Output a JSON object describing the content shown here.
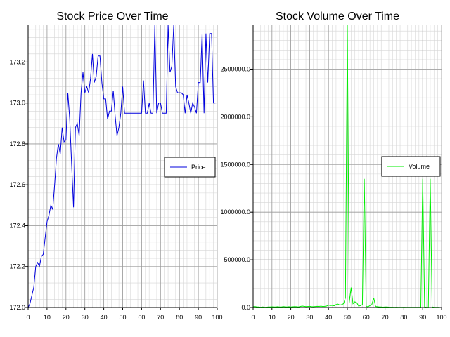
{
  "chart_data": [
    {
      "type": "line",
      "title": "Stock Price Over Time",
      "xlabel": "",
      "ylabel": "",
      "xlim": [
        0,
        100
      ],
      "ylim": [
        172.0,
        173.38
      ],
      "xticks": [
        "0",
        "10",
        "20",
        "30",
        "40",
        "50",
        "60",
        "70",
        "80",
        "90",
        "100"
      ],
      "yticks": [
        "172.0",
        "172.2",
        "172.4",
        "172.6",
        "172.8",
        "173.0",
        "173.2"
      ],
      "grid": true,
      "legend": "center-right",
      "series": [
        {
          "name": "Price",
          "color": "#0000dd",
          "x": [
            0,
            1,
            2,
            3,
            4,
            5,
            6,
            7,
            8,
            9,
            10,
            11,
            12,
            13,
            14,
            15,
            16,
            17,
            18,
            19,
            20,
            21,
            22,
            23,
            24,
            25,
            26,
            27,
            28,
            29,
            30,
            31,
            32,
            33,
            34,
            35,
            36,
            37,
            38,
            39,
            40,
            41,
            42,
            43,
            44,
            45,
            46,
            47,
            48,
            49,
            50,
            51,
            52,
            53,
            54,
            55,
            56,
            57,
            58,
            59,
            60,
            61,
            62,
            63,
            64,
            65,
            66,
            67,
            68,
            69,
            70,
            71,
            72,
            73,
            74,
            75,
            76,
            77,
            78,
            79,
            80,
            81,
            82,
            83,
            84,
            85,
            86,
            87,
            88,
            89,
            90,
            91,
            92,
            93,
            94,
            95,
            96,
            97,
            98,
            99
          ],
          "y": [
            172.0,
            172.02,
            172.06,
            172.1,
            172.2,
            172.22,
            172.2,
            172.25,
            172.26,
            172.34,
            172.42,
            172.45,
            172.5,
            172.48,
            172.6,
            172.73,
            172.8,
            172.75,
            172.88,
            172.81,
            172.82,
            173.05,
            172.92,
            172.7,
            172.49,
            172.88,
            172.9,
            172.84,
            173.05,
            173.15,
            173.05,
            173.08,
            173.05,
            173.12,
            173.24,
            173.1,
            173.13,
            173.23,
            173.23,
            173.1,
            173.02,
            173.02,
            172.92,
            172.96,
            172.96,
            173.06,
            172.94,
            172.84,
            172.88,
            172.95,
            173.08,
            172.95,
            172.95,
            172.95,
            172.95,
            172.95,
            172.95,
            172.95,
            172.95,
            172.95,
            172.95,
            173.11,
            172.95,
            172.95,
            173.0,
            172.95,
            172.95,
            173.38,
            172.95,
            173.0,
            173.0,
            172.95,
            172.95,
            172.95,
            173.38,
            173.15,
            173.18,
            173.38,
            173.08,
            173.05,
            173.05,
            173.05,
            173.04,
            172.95,
            173.04,
            173.0,
            172.95,
            173.0,
            172.98,
            172.95,
            173.1,
            173.1,
            173.34,
            172.95,
            173.34,
            173.1,
            173.34,
            173.34,
            173.0,
            173.0
          ]
        }
      ]
    },
    {
      "type": "line",
      "title": "Stock Volume Over Time",
      "xlabel": "",
      "ylabel": "",
      "xlim": [
        0,
        100
      ],
      "ylim": [
        0,
        2960000
      ],
      "xticks": [
        "0",
        "10",
        "20",
        "30",
        "40",
        "50",
        "60",
        "70",
        "80",
        "90",
        "100"
      ],
      "yticks": [
        "0.0",
        "500000.0",
        "1000000.0",
        "1500000.0",
        "2000000.0",
        "2500000.0"
      ],
      "grid": true,
      "legend": "center-right",
      "series": [
        {
          "name": "Volume",
          "color": "#00ee00",
          "x": [
            0,
            1,
            2,
            3,
            4,
            5,
            6,
            7,
            8,
            9,
            10,
            11,
            12,
            13,
            14,
            15,
            16,
            17,
            18,
            19,
            20,
            21,
            22,
            23,
            24,
            25,
            26,
            27,
            28,
            29,
            30,
            31,
            32,
            33,
            34,
            35,
            36,
            37,
            38,
            39,
            40,
            41,
            42,
            43,
            44,
            45,
            46,
            47,
            48,
            49,
            50,
            51,
            52,
            53,
            54,
            55,
            56,
            57,
            58,
            59,
            60,
            61,
            62,
            63,
            64,
            65,
            66,
            67,
            68,
            69,
            70,
            71,
            72,
            73,
            74,
            75,
            76,
            77,
            78,
            79,
            80,
            81,
            82,
            83,
            84,
            85,
            86,
            87,
            88,
            89,
            90,
            91,
            92,
            93,
            94,
            95,
            96,
            97,
            98,
            99
          ],
          "y": [
            8000,
            10000,
            6000,
            5000,
            3000,
            5000,
            4000,
            3000,
            5000,
            6000,
            7000,
            5000,
            6000,
            8000,
            6000,
            5000,
            9000,
            7000,
            6000,
            8000,
            6000,
            7000,
            9000,
            8000,
            6000,
            10000,
            15000,
            12000,
            9000,
            10000,
            12000,
            9000,
            8000,
            10000,
            12000,
            11000,
            14000,
            10000,
            12000,
            15000,
            25000,
            20000,
            22000,
            18000,
            30000,
            35000,
            25000,
            30000,
            40000,
            100000,
            2960000,
            50000,
            210000,
            40000,
            60000,
            50000,
            15000,
            20000,
            30000,
            1350000,
            10000,
            8000,
            20000,
            30000,
            100000,
            10000,
            8000,
            6000,
            5000,
            4000,
            6000,
            5000,
            4000,
            3000,
            3000,
            2000,
            3000,
            2000,
            2000,
            2000,
            3000,
            2000,
            2000,
            2000,
            1500,
            1500,
            1500,
            1500,
            1500,
            2000,
            1350000,
            5000,
            3000,
            2000,
            1350000,
            5000,
            3000,
            2000,
            1500,
            1500
          ]
        }
      ]
    }
  ]
}
